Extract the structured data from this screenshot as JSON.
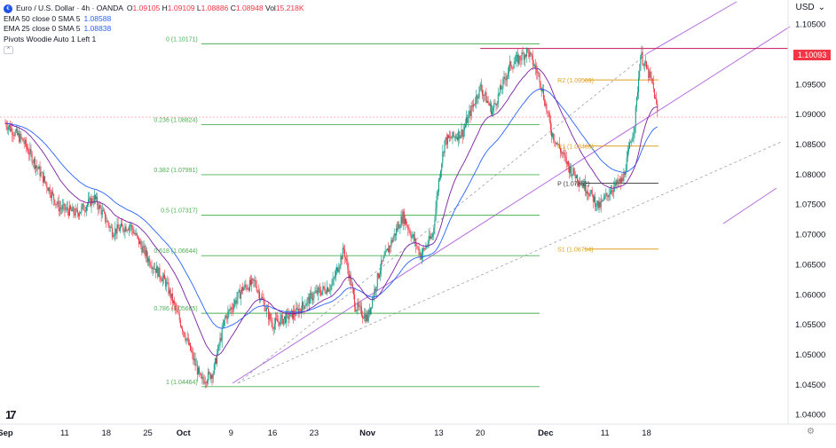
{
  "header": {
    "symbol": "Euro / U.S. Dollar · 4h · OANDA",
    "ohlc": {
      "open_label": "O",
      "open": "1.09105",
      "high_label": "H",
      "high": "1.09109",
      "low_label": "L",
      "low": "1.08886",
      "close_label": "C",
      "close": "1.08948",
      "vol_label": "Vol",
      "vol": "15.218K"
    },
    "indicators": [
      {
        "label": "EMA 50 close 0 SMA 5",
        "value": "1.08588"
      },
      {
        "label": "EMA 25 close 0 SMA 5",
        "value": "1.08838"
      },
      {
        "label": "Pivots Woodie Auto 1 Left 1",
        "value": ""
      }
    ],
    "currency": "USD"
  },
  "last_price_tag": "1.10093",
  "colors": {
    "up": "#089981",
    "down": "#f23645",
    "ema50": "#2962ff",
    "ema25": "#7b1fa2",
    "fib": "#4caf50",
    "pivot": "#e0a020",
    "channel": "#b56be0",
    "hline": "#c2185b"
  },
  "chart_data": {
    "type": "candlestick",
    "ylim": [
      1.039,
      1.109
    ],
    "y_ticks": [
      "1.10500",
      "1.10000",
      "1.09500",
      "1.09000",
      "1.08500",
      "1.08000",
      "1.07500",
      "1.07000",
      "1.06500",
      "1.06000",
      "1.05500",
      "1.05000",
      "1.04500",
      "1.04000"
    ],
    "y_tick_values": [
      1.105,
      1.1,
      1.095,
      1.09,
      1.085,
      1.08,
      1.075,
      1.07,
      1.065,
      1.06,
      1.055,
      1.05,
      1.045,
      1.04
    ],
    "x_ticks": [
      "Sep",
      "11",
      "18",
      "25",
      "Oct",
      "9",
      "16",
      "23",
      "Nov",
      "13",
      "20",
      "Dec",
      "11",
      "18"
    ],
    "x_tick_days": [
      0,
      10,
      17,
      24,
      30,
      38,
      45,
      52,
      61,
      73,
      80,
      91,
      101,
      108
    ],
    "anchors": [
      [
        0,
        1.0885
      ],
      [
        3,
        1.0855
      ],
      [
        6,
        1.08
      ],
      [
        9,
        1.0745
      ],
      [
        12,
        1.0735
      ],
      [
        15,
        1.076
      ],
      [
        18,
        1.0705
      ],
      [
        21,
        1.0715
      ],
      [
        24,
        1.066
      ],
      [
        27,
        1.062
      ],
      [
        30,
        1.054
      ],
      [
        33,
        1.0455
      ],
      [
        35,
        1.047
      ],
      [
        37,
        1.056
      ],
      [
        40,
        1.061
      ],
      [
        42,
        1.062
      ],
      [
        45,
        1.055
      ],
      [
        49,
        1.057
      ],
      [
        52,
        1.06
      ],
      [
        55,
        1.0615
      ],
      [
        57,
        1.0675
      ],
      [
        59,
        1.058
      ],
      [
        61,
        1.056
      ],
      [
        63,
        1.064
      ],
      [
        66,
        1.071
      ],
      [
        67,
        1.073
      ],
      [
        70,
        1.0665
      ],
      [
        72,
        1.07
      ],
      [
        73,
        1.079
      ],
      [
        74,
        1.0855
      ],
      [
        77,
        1.087
      ],
      [
        80,
        1.0945
      ],
      [
        82,
        1.0905
      ],
      [
        85,
        1.098
      ],
      [
        88,
        1.1005
      ],
      [
        90,
        1.096
      ],
      [
        92,
        1.087
      ],
      [
        95,
        1.081
      ],
      [
        98,
        1.0775
      ],
      [
        100,
        1.0745
      ],
      [
        102,
        1.0775
      ],
      [
        104,
        1.079
      ],
      [
        106,
        1.0885
      ],
      [
        107,
        1.1
      ],
      [
        109,
        1.095
      ],
      [
        110,
        1.0895
      ]
    ],
    "series": [
      {
        "name": "EMA 50 close 0 SMA 5",
        "value": "1.08588"
      },
      {
        "name": "EMA 25 close 0 SMA 5",
        "value": "1.08838"
      }
    ],
    "fib_levels": [
      {
        "label": "0 (1.10171)",
        "value": 1.10171
      },
      {
        "label": "0.236 (1.08824)",
        "value": 1.08824
      },
      {
        "label": "0.382 (1.07991)",
        "value": 1.07991
      },
      {
        "label": "0.5 (1.07317)",
        "value": 1.07317
      },
      {
        "label": "0.618 (1.06644)",
        "value": 1.06644
      },
      {
        "label": "0.786 (1.05685)",
        "value": 1.05685
      },
      {
        "label": "1 (1.04464)",
        "value": 1.04464
      }
    ],
    "fib_day_range": [
      33,
      90
    ],
    "pivots": [
      {
        "label": "R2 (1.09569)",
        "value": 1.09569
      },
      {
        "label": "R1 (1.08469)",
        "value": 1.08469
      },
      {
        "label": "P (1.07852)",
        "value": 1.07852
      },
      {
        "label": "S1 (1.06754)",
        "value": 1.06754
      }
    ],
    "pivot_day_range": [
      93,
      110
    ],
    "hline": {
      "value": 1.10093,
      "day_range": [
        80,
        111
      ]
    },
    "dotted_price": 1.0895
  }
}
